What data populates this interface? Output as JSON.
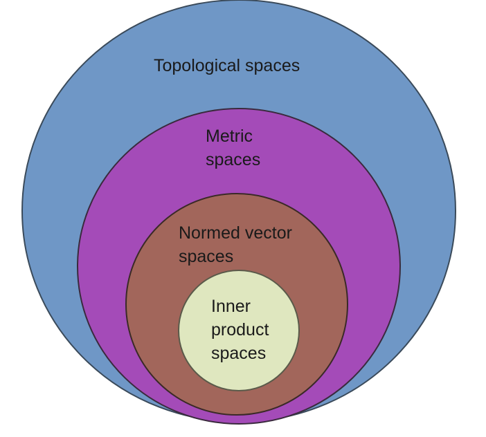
{
  "diagram": {
    "sets": [
      {
        "id": "topological",
        "label_lines": [
          "Topological spaces"
        ],
        "fill": "#6f97c6",
        "stroke": "#3a4a5a"
      },
      {
        "id": "metric",
        "label_lines": [
          "Metric",
          "spaces"
        ],
        "fill": "#a44bb8",
        "stroke": "#3a2a3d"
      },
      {
        "id": "normed",
        "label_lines": [
          "Normed vector",
          "spaces"
        ],
        "fill": "#a2665b",
        "stroke": "#3a2a27"
      },
      {
        "id": "inner-product",
        "label_lines": [
          "Inner",
          "product",
          "spaces"
        ],
        "fill": "#dfe7bf",
        "stroke": "#5a5a4a"
      }
    ]
  }
}
